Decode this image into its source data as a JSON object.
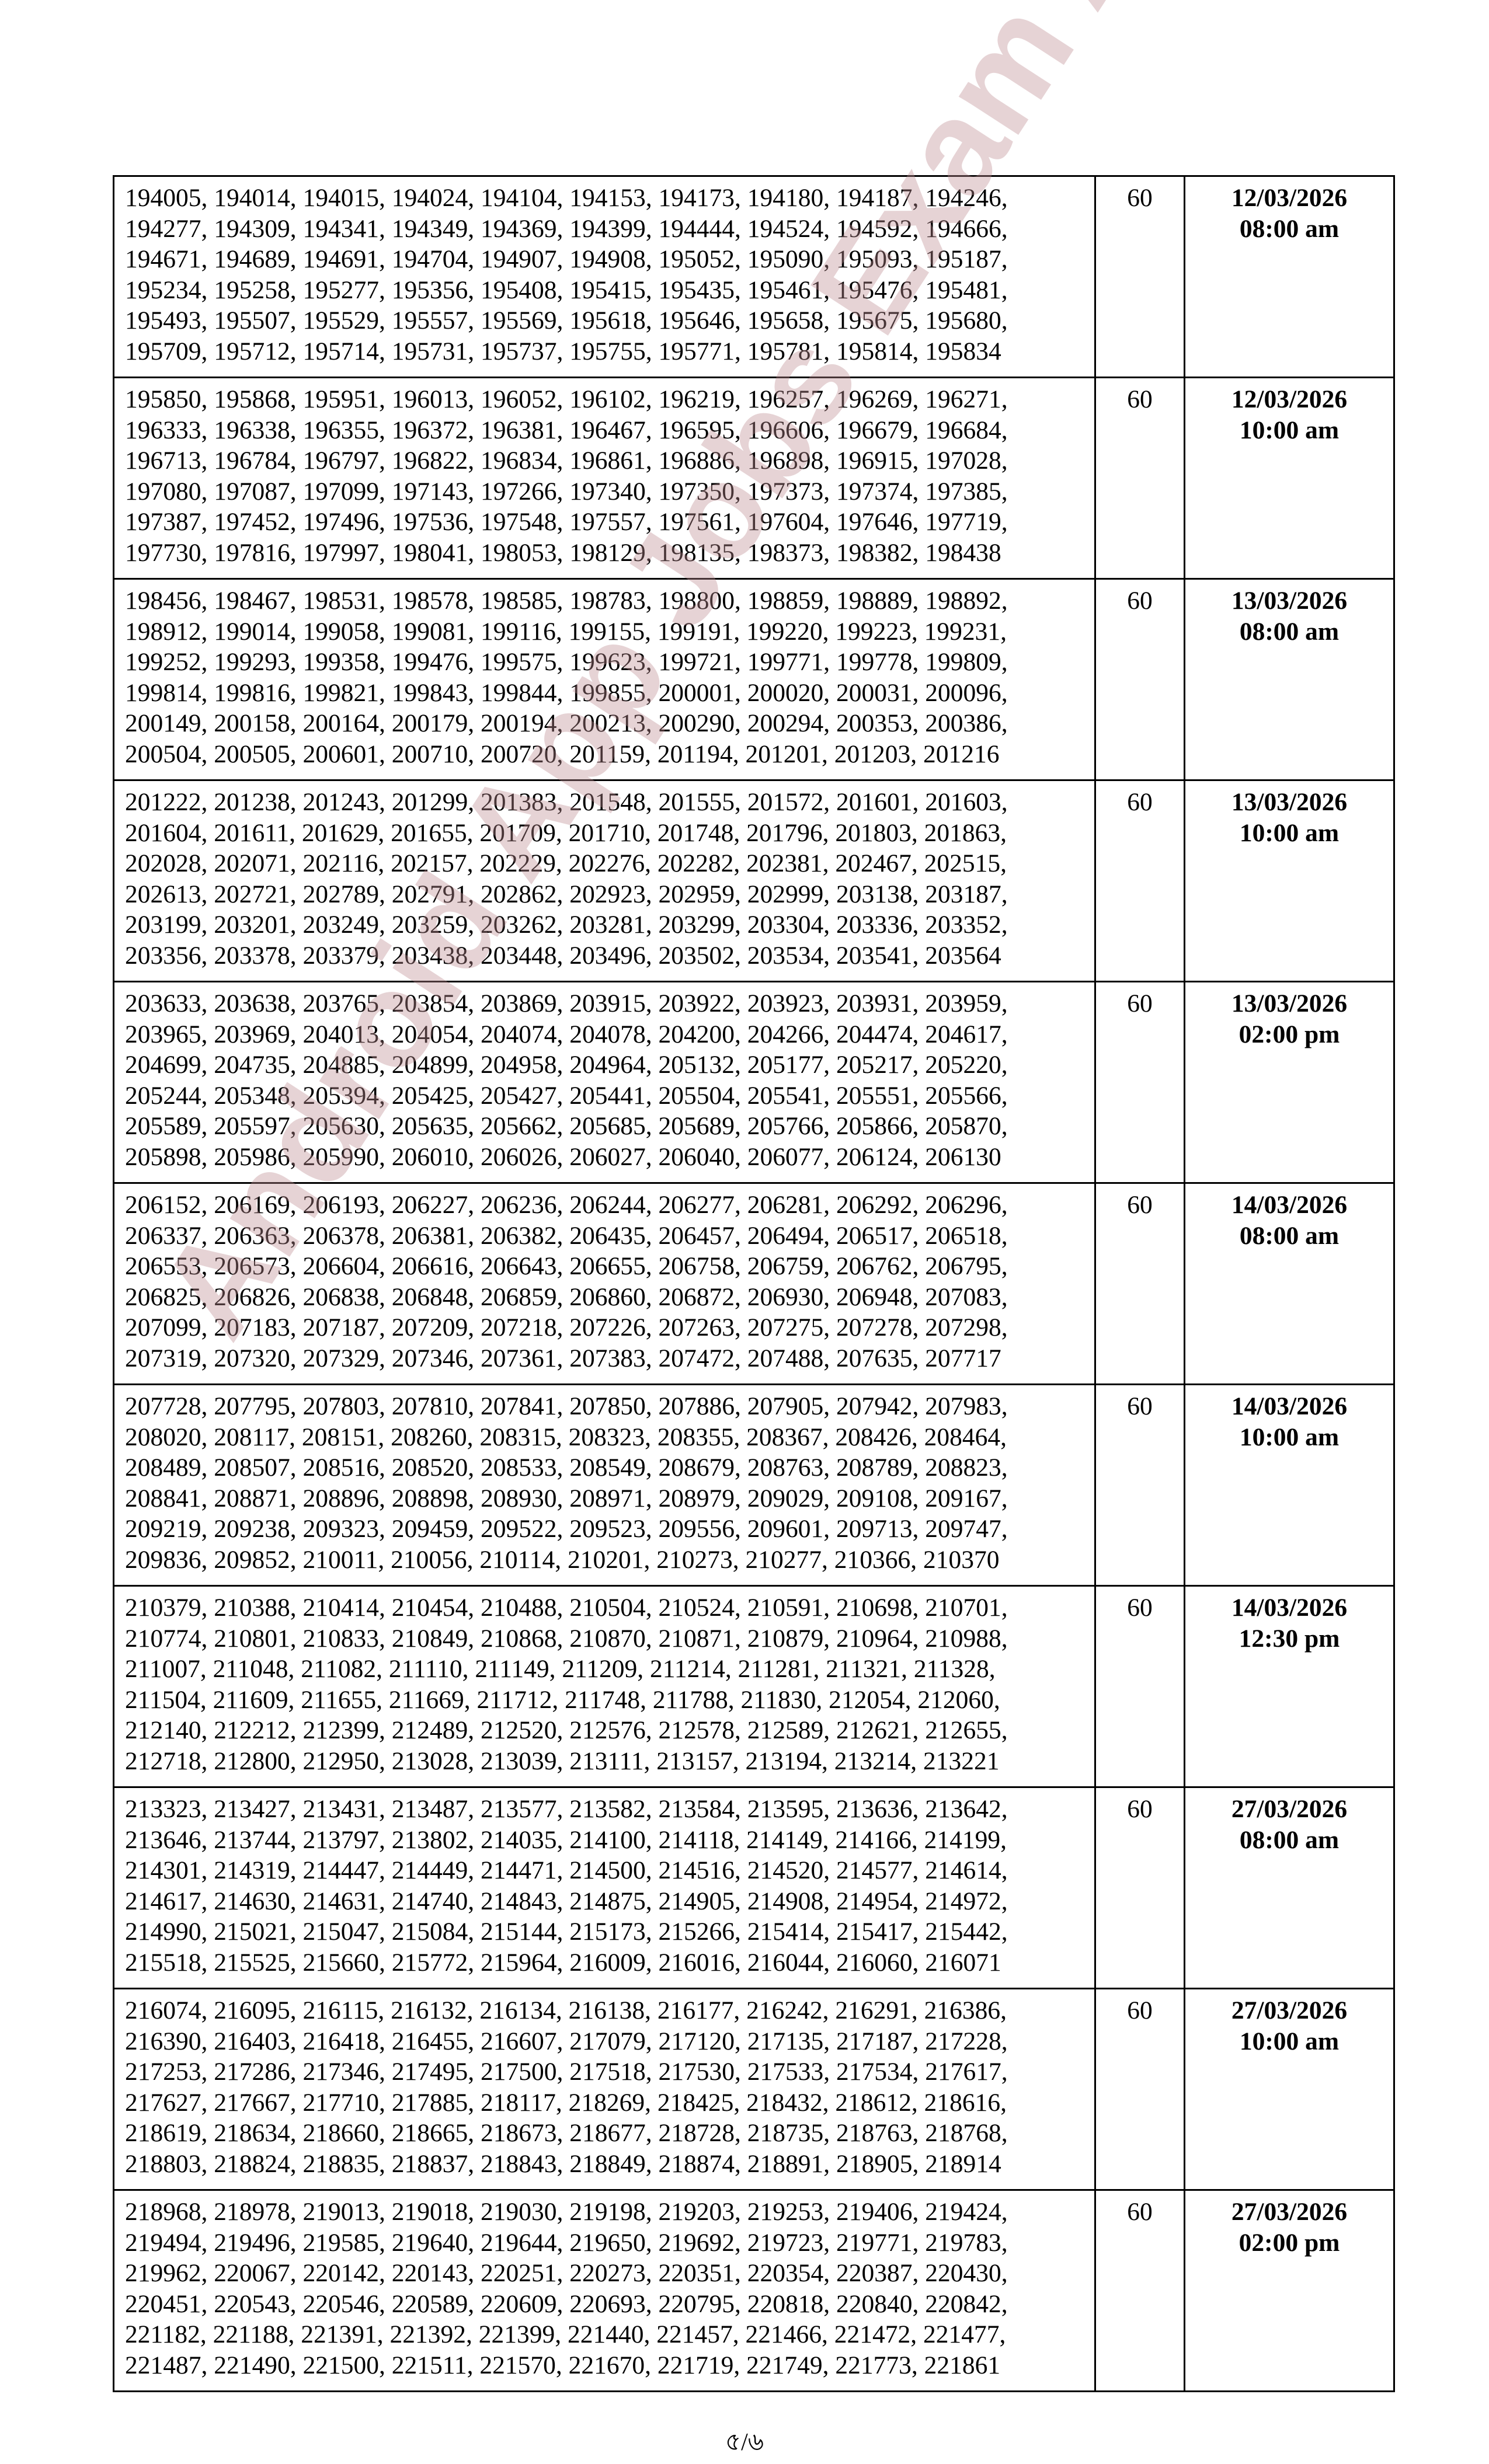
{
  "table": {
    "rows": [
      {
        "lines": [
          "194005, 194014, 194015, 194024, 194104, 194153, 194173, 194180, 194187, 194246,",
          "194277, 194309, 194341, 194349, 194369, 194399, 194444, 194524, 194592, 194666,",
          "194671, 194689, 194691, 194704, 194907, 194908, 195052, 195090, 195093, 195187,",
          "195234, 195258, 195277, 195356, 195408, 195415, 195435, 195461, 195476, 195481,",
          "195493, 195507, 195529, 195557, 195569, 195618, 195646, 195658, 195675, 195680,",
          "195709, 195712, 195714, 195731, 195737, 195755, 195771, 195781, 195814, 195834"
        ],
        "count": "60",
        "date": "12/03/2026",
        "time": "08:00 am"
      },
      {
        "lines": [
          "195850, 195868, 195951, 196013, 196052, 196102, 196219, 196257, 196269, 196271,",
          "196333, 196338, 196355, 196372, 196381, 196467, 196595, 196606, 196679, 196684,",
          "196713, 196784, 196797, 196822, 196834, 196861, 196886, 196898, 196915, 197028,",
          "197080, 197087, 197099, 197143, 197266, 197340, 197350, 197373, 197374, 197385,",
          "197387, 197452, 197496, 197536, 197548, 197557, 197561, 197604, 197646, 197719,",
          "197730, 197816, 197997, 198041, 198053, 198129, 198135, 198373, 198382, 198438"
        ],
        "count": "60",
        "date": "12/03/2026",
        "time": "10:00 am"
      },
      {
        "lines": [
          "198456, 198467, 198531, 198578, 198585, 198783, 198800, 198859, 198889, 198892,",
          "198912, 199014, 199058, 199081, 199116, 199155, 199191, 199220, 199223, 199231,",
          "199252, 199293, 199358, 199476, 199575, 199623, 199721, 199771, 199778, 199809,",
          "199814, 199816, 199821, 199843, 199844, 199855, 200001, 200020, 200031, 200096,",
          "200149, 200158, 200164, 200179, 200194, 200213, 200290, 200294, 200353, 200386,",
          "200504, 200505, 200601, 200710, 200720, 201159, 201194, 201201, 201203, 201216"
        ],
        "count": "60",
        "date": "13/03/2026",
        "time": "08:00 am"
      },
      {
        "lines": [
          "201222, 201238, 201243, 201299, 201383, 201548, 201555, 201572, 201601, 201603,",
          "201604, 201611, 201629, 201655, 201709, 201710, 201748, 201796, 201803, 201863,",
          "202028, 202071, 202116, 202157, 202229, 202276, 202282, 202381, 202467, 202515,",
          "202613, 202721, 202789, 202791, 202862, 202923, 202959, 202999, 203138, 203187,",
          "203199, 203201, 203249, 203259, 203262, 203281, 203299, 203304, 203336, 203352,",
          "203356, 203378, 203379, 203438, 203448, 203496, 203502, 203534, 203541, 203564"
        ],
        "count": "60",
        "date": "13/03/2026",
        "time": "10:00 am"
      },
      {
        "lines": [
          "203633, 203638, 203765, 203854, 203869, 203915, 203922, 203923, 203931, 203959,",
          "203965, 203969, 204013, 204054, 204074, 204078, 204200, 204266, 204474, 204617,",
          "204699, 204735, 204885, 204899, 204958, 204964, 205132, 205177, 205217, 205220,",
          "205244, 205348, 205394, 205425, 205427, 205441, 205504, 205541, 205551, 205566,",
          "205589, 205597, 205630, 205635, 205662, 205685, 205689, 205766, 205866, 205870,",
          "205898, 205986, 205990, 206010, 206026, 206027, 206040, 206077, 206124, 206130"
        ],
        "count": "60",
        "date": "13/03/2026",
        "time": "02:00 pm"
      },
      {
        "lines": [
          "206152, 206169, 206193, 206227, 206236, 206244, 206277, 206281, 206292, 206296,",
          "206337, 206363, 206378, 206381, 206382, 206435, 206457, 206494, 206517, 206518,",
          "206553, 206573, 206604, 206616, 206643, 206655, 206758, 206759, 206762, 206795,",
          "206825, 206826, 206838, 206848, 206859, 206860, 206872, 206930, 206948, 207083,",
          "207099, 207183, 207187, 207209, 207218, 207226, 207263, 207275, 207278, 207298,",
          "207319, 207320, 207329, 207346, 207361, 207383, 207472, 207488, 207635, 207717"
        ],
        "count": "60",
        "date": "14/03/2026",
        "time": "08:00 am"
      },
      {
        "lines": [
          "207728, 207795, 207803, 207810, 207841, 207850, 207886, 207905, 207942, 207983,",
          "208020, 208117, 208151, 208260, 208315, 208323, 208355, 208367, 208426, 208464,",
          "208489, 208507, 208516, 208520, 208533, 208549, 208679, 208763, 208789, 208823,",
          "208841, 208871, 208896, 208898, 208930, 208971, 208979, 209029, 209108, 209167,",
          "209219, 209238, 209323, 209459, 209522, 209523, 209556, 209601, 209713, 209747,",
          "209836, 209852, 210011, 210056, 210114, 210201, 210273, 210277, 210366, 210370"
        ],
        "count": "60",
        "date": "14/03/2026",
        "time": "10:00 am"
      },
      {
        "lines": [
          "210379, 210388, 210414, 210454, 210488, 210504, 210524, 210591, 210698, 210701,",
          "210774, 210801, 210833, 210849, 210868, 210870, 210871, 210879, 210964, 210988,",
          "211007, 211048, 211082, 211110, 211149, 211209, 211214, 211281, 211321, 211328,",
          "211504, 211609, 211655, 211669, 211712, 211748, 211788, 211830, 212054, 212060,",
          "212140, 212212, 212399, 212489, 212520, 212576, 212578, 212589, 212621, 212655,",
          "212718, 212800, 212950, 213028, 213039, 213111, 213157, 213194, 213214, 213221"
        ],
        "count": "60",
        "date": "14/03/2026",
        "time": "12:30 pm"
      },
      {
        "lines": [
          "213323, 213427, 213431, 213487, 213577, 213582, 213584, 213595, 213636, 213642,",
          "213646, 213744, 213797, 213802, 214035, 214100, 214118, 214149, 214166, 214199,",
          "214301, 214319, 214447, 214449, 214471, 214500, 214516, 214520, 214577, 214614,",
          "214617, 214630, 214631, 214740, 214843, 214875, 214905, 214908, 214954, 214972,",
          "214990, 215021, 215047, 215084, 215144, 215173, 215266, 215414, 215417, 215442,",
          "215518, 215525, 215660, 215772, 215964, 216009, 216016, 216044, 216060, 216071"
        ],
        "count": "60",
        "date": "27/03/2026",
        "time": "08:00 am"
      },
      {
        "lines": [
          "216074, 216095, 216115, 216132, 216134, 216138, 216177, 216242, 216291, 216386,",
          "216390, 216403, 216418, 216455, 216607, 217079, 217120, 217135, 217187, 217228,",
          "217253, 217286, 217346, 217495, 217500, 217518, 217530, 217533, 217534, 217617,",
          "217627, 217667, 217710, 217885, 218117, 218269, 218425, 218432, 218612, 218616,",
          "218619, 218634, 218660, 218665, 218673, 218677, 218728, 218735, 218763, 218768,",
          "218803, 218824, 218835, 218837, 218843, 218849, 218874, 218891, 218905, 218914"
        ],
        "count": "60",
        "date": "27/03/2026",
        "time": "10:00 am"
      },
      {
        "lines": [
          "218968, 218978, 219013, 219018, 219030, 219198, 219203, 219253, 219406, 219424,",
          "219494, 219496, 219585, 219640, 219644, 219650, 219692, 219723, 219771, 219783,",
          "219962, 220067, 220142, 220143, 220251, 220273, 220351, 220354, 220387, 220430,",
          "220451, 220543, 220546, 220589, 220609, 220693, 220795, 220818, 220840, 220842,",
          "221182, 221188, 221391, 221392, 221399, 221440, 221457, 221466, 221472, 221477,",
          "221487, 221490, 221500, 221511, 221570, 221670, 221719, 221749, 221773, 221861"
        ],
        "count": "60",
        "date": "27/03/2026",
        "time": "02:00 pm"
      }
    ]
  },
  "watermark": {
    "text": "Android App Jobs Exam Alert",
    "color": "#be8c91"
  },
  "footer": {
    "page_number": "৫/৬"
  }
}
